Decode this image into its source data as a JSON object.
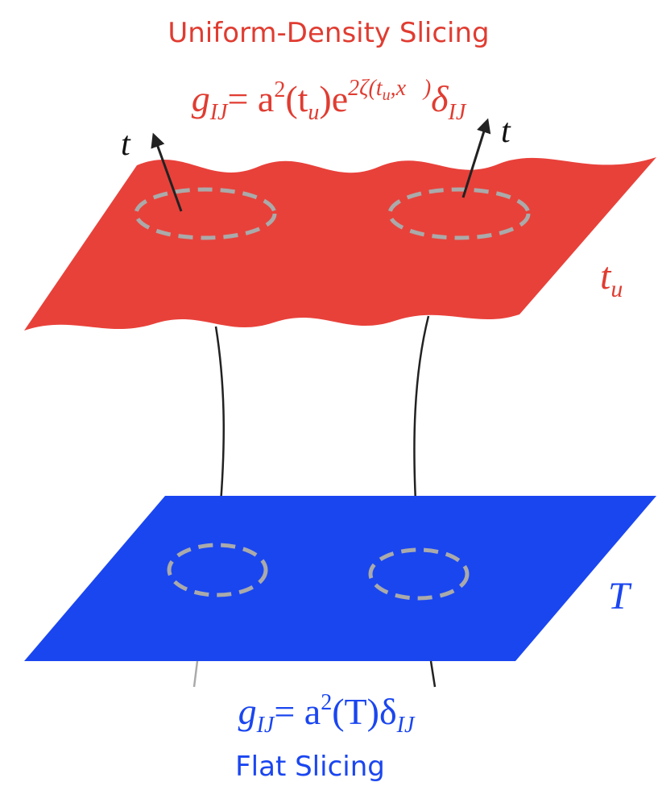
{
  "top": {
    "title": "Uniform-Density Slicing",
    "equation": [
      "g",
      "IJ",
      "= a",
      "2",
      "(t",
      "u",
      ")e",
      "2ζ(t",
      "u",
      ",x⃗)",
      "δ",
      "IJ"
    ],
    "normal_labels": [
      "t",
      "t"
    ],
    "surface_label": [
      "t",
      "u"
    ]
  },
  "bottom": {
    "equation": [
      "g",
      "IJ",
      "= a",
      "2",
      "(T)δ",
      "IJ"
    ],
    "surface_label": "T",
    "title": "Flat Slicing"
  }
}
